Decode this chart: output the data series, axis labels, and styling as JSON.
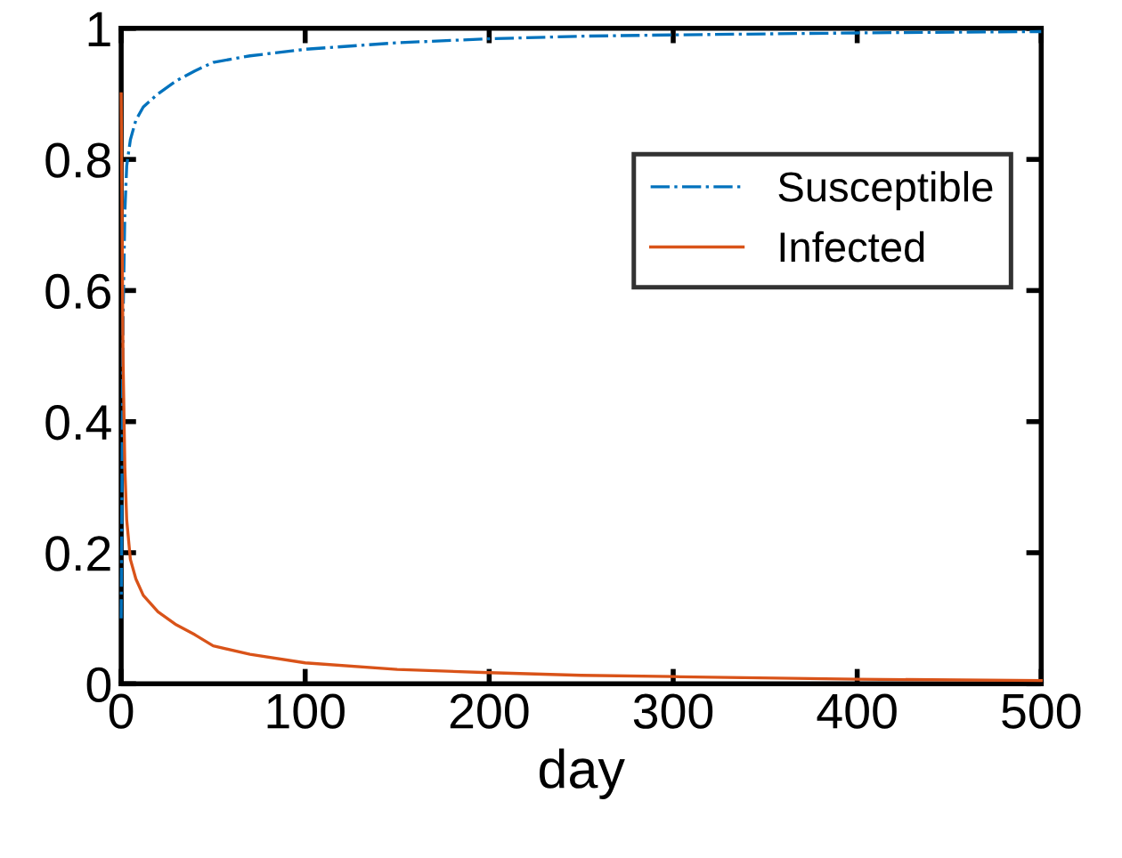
{
  "chart_data": {
    "type": "line",
    "xlabel": "day",
    "xlim": [
      0,
      500
    ],
    "ylim": [
      0,
      1
    ],
    "xticks": [
      0,
      100,
      200,
      300,
      400,
      500
    ],
    "yticks": [
      0,
      0.2,
      0.4,
      0.6,
      0.8,
      1
    ],
    "grid": false,
    "legend": "top right",
    "series": [
      {
        "name": "Susceptible",
        "color": "#0072bd",
        "line_style": "dashdot",
        "x": [
          0,
          1,
          2,
          3,
          5,
          8,
          12,
          20,
          30,
          40,
          50,
          70,
          100,
          150,
          200,
          250,
          300,
          400,
          500
        ],
        "values": [
          0.1,
          0.55,
          0.72,
          0.79,
          0.83,
          0.86,
          0.88,
          0.9,
          0.92,
          0.935,
          0.948,
          0.958,
          0.968,
          0.978,
          0.984,
          0.988,
          0.99,
          0.993,
          0.995
        ]
      },
      {
        "name": "Infected",
        "color": "#d95319",
        "line_style": "solid",
        "x": [
          0,
          1,
          2,
          3,
          5,
          8,
          12,
          20,
          30,
          40,
          50,
          70,
          100,
          150,
          200,
          250,
          300,
          400,
          500
        ],
        "values": [
          0.9,
          0.5,
          0.33,
          0.25,
          0.19,
          0.16,
          0.135,
          0.11,
          0.09,
          0.075,
          0.058,
          0.045,
          0.032,
          0.022,
          0.017,
          0.013,
          0.011,
          0.007,
          0.005
        ]
      }
    ]
  }
}
